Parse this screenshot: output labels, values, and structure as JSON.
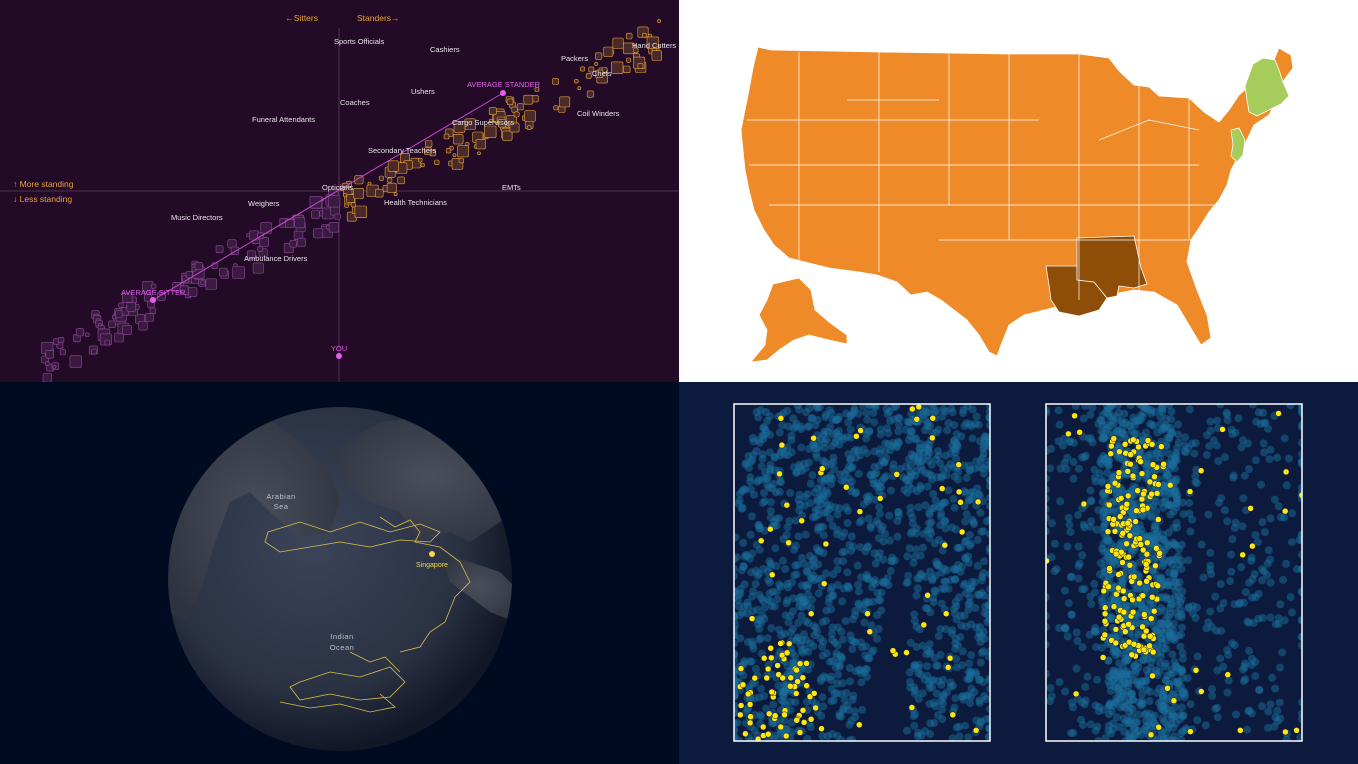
{
  "colors": {
    "standers_bg": "#230a26",
    "stander_box": "#e7a33a",
    "average_pink": "#e85cf0",
    "map_orange": "#ef8a28",
    "map_brown": "#8f4e07",
    "map_green": "#a6cc5c",
    "ocean_bg": "#000b22",
    "track_yellow": "#d9c04a",
    "scatter_bg": "#0c1b3d",
    "scatter_blue": "#1a6e9c",
    "scatter_yellow": "#ffe60c"
  },
  "standers": {
    "axis_left": "←Sitters",
    "axis_right": "Standers→",
    "more_standing": "↑ More standing",
    "less_standing": "↓ Less standing",
    "average_stander": "AVERAGE STANDER",
    "average_sitter": "AVERAGE SITTER",
    "you": "YOU",
    "occupations": [
      "Sports Officials",
      "Cashiers",
      "Hand Cutters",
      "Packers",
      "Chefs",
      "Ushers",
      "Coaches",
      "Coil Winders",
      "Funeral Attendants",
      "Cargo Supervisors",
      "Secondary Teachers",
      "Opticians",
      "EMTs",
      "Weighers",
      "Health Technicians",
      "Music Directors",
      "Ambulance Drivers"
    ]
  },
  "map": {
    "legend": "none"
  },
  "globe": {
    "labels": {
      "arabian_sea_1": "Arabian",
      "arabian_sea_2": "Sea",
      "indian_ocean_1": "Indian",
      "indian_ocean_2": "Ocean",
      "city": "Singapore"
    }
  },
  "chart_data": {
    "type": "scatter",
    "title": "",
    "xlabel": "",
    "ylabel": "",
    "panels": 2,
    "series": [
      {
        "name": "",
        "color": "#1a6e9c"
      },
      {
        "name": "",
        "color": "#ffe60c"
      }
    ],
    "grid": false,
    "legend": "none"
  }
}
